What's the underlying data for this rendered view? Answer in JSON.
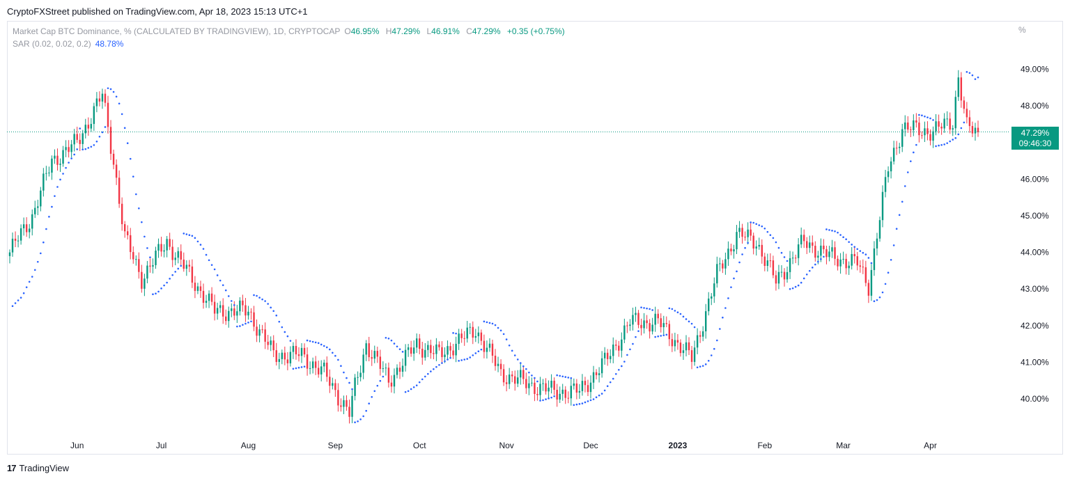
{
  "header": {
    "published": "CryptoFXStreet published on TradingView.com, Apr 18, 2023 15:13 UTC+1"
  },
  "legend": {
    "name": "Market Cap BTC Dominance, % (CALCULATED BY TRADINGVIEW), 1D, CRYPTOCAP",
    "o_label": "O",
    "o": "46.95%",
    "h_label": "H",
    "h": "47.29%",
    "l_label": "L",
    "l": "46.91%",
    "c_label": "C",
    "c": "47.29%",
    "change": "+0.35 (+0.75%)",
    "sar_label": "SAR (0.02, 0.02, 0.2)",
    "sar_value": "48.78%"
  },
  "axis": {
    "unit": "%"
  },
  "badge": {
    "price": "47.29%",
    "countdown": "09:46:30"
  },
  "footer": {
    "brand": "TradingView"
  },
  "colors": {
    "up": "#089981",
    "down": "#f23645",
    "sar": "#2962ff",
    "price_line": "#089981"
  },
  "chart_data": {
    "type": "candlestick",
    "y_ticks": [
      "40.00%",
      "41.00%",
      "42.00%",
      "43.00%",
      "44.00%",
      "45.00%",
      "46.00%",
      "47.00%",
      "48.00%",
      "49.00%"
    ],
    "ylim": [
      39.0,
      49.6
    ],
    "x_ticks": [
      {
        "label": "Jun",
        "date": "2022-06-01"
      },
      {
        "label": "Jul",
        "date": "2022-07-01"
      },
      {
        "label": "Aug",
        "date": "2022-08-01"
      },
      {
        "label": "Sep",
        "date": "2022-09-01"
      },
      {
        "label": "Oct",
        "date": "2022-10-01"
      },
      {
        "label": "Nov",
        "date": "2022-11-01"
      },
      {
        "label": "Dec",
        "date": "2022-12-01"
      },
      {
        "label": "2023",
        "date": "2023-01-01"
      },
      {
        "label": "Feb",
        "date": "2023-02-01"
      },
      {
        "label": "Mar",
        "date": "2023-03-01"
      },
      {
        "label": "Apr",
        "date": "2023-04-01"
      }
    ],
    "last_price": 47.29,
    "candles_start_date": "2022-05-08",
    "candles_end_date": "2023-04-18",
    "key_closes": [
      {
        "date": "2022-05-08",
        "close": 44.0
      },
      {
        "date": "2022-05-16",
        "close": 45.0
      },
      {
        "date": "2022-05-23",
        "close": 46.5
      },
      {
        "date": "2022-06-01",
        "close": 47.0
      },
      {
        "date": "2022-06-10",
        "close": 48.3
      },
      {
        "date": "2022-06-14",
        "close": 46.5
      },
      {
        "date": "2022-06-18",
        "close": 44.4
      },
      {
        "date": "2022-06-24",
        "close": 43.3
      },
      {
        "date": "2022-07-03",
        "close": 44.3
      },
      {
        "date": "2022-07-10",
        "close": 43.5
      },
      {
        "date": "2022-07-20",
        "close": 42.4
      },
      {
        "date": "2022-08-01",
        "close": 42.4
      },
      {
        "date": "2022-08-10",
        "close": 41.2
      },
      {
        "date": "2022-08-20",
        "close": 41.2
      },
      {
        "date": "2022-08-28",
        "close": 40.7
      },
      {
        "date": "2022-09-06",
        "close": 39.6
      },
      {
        "date": "2022-09-08",
        "close": 40.3
      },
      {
        "date": "2022-09-12",
        "close": 41.5
      },
      {
        "date": "2022-09-20",
        "close": 40.5
      },
      {
        "date": "2022-09-30",
        "close": 41.5
      },
      {
        "date": "2022-10-08",
        "close": 41.2
      },
      {
        "date": "2022-10-21",
        "close": 41.9
      },
      {
        "date": "2022-10-30",
        "close": 40.7
      },
      {
        "date": "2022-11-09",
        "close": 40.4
      },
      {
        "date": "2022-11-18",
        "close": 40.2
      },
      {
        "date": "2022-11-27",
        "close": 40.2
      },
      {
        "date": "2022-12-06",
        "close": 41.0
      },
      {
        "date": "2022-12-15",
        "close": 42.1
      },
      {
        "date": "2022-12-25",
        "close": 42.1
      },
      {
        "date": "2023-01-06",
        "close": 41.1
      },
      {
        "date": "2023-01-15",
        "close": 43.4
      },
      {
        "date": "2023-01-22",
        "close": 44.5
      },
      {
        "date": "2023-01-29",
        "close": 44.3
      },
      {
        "date": "2023-02-05",
        "close": 43.2
      },
      {
        "date": "2023-02-15",
        "close": 44.3
      },
      {
        "date": "2023-02-24",
        "close": 43.9
      },
      {
        "date": "2023-03-06",
        "close": 43.7
      },
      {
        "date": "2023-03-10",
        "close": 43.1
      },
      {
        "date": "2023-03-13",
        "close": 44.5
      },
      {
        "date": "2023-03-17",
        "close": 46.3
      },
      {
        "date": "2023-03-22",
        "close": 47.4
      },
      {
        "date": "2023-04-02",
        "close": 47.3
      },
      {
        "date": "2023-04-09",
        "close": 47.6
      },
      {
        "date": "2023-04-11",
        "close": 48.8
      },
      {
        "date": "2023-04-14",
        "close": 47.4
      },
      {
        "date": "2023-04-18",
        "close": 47.29
      }
    ],
    "sar_last": 48.78
  }
}
